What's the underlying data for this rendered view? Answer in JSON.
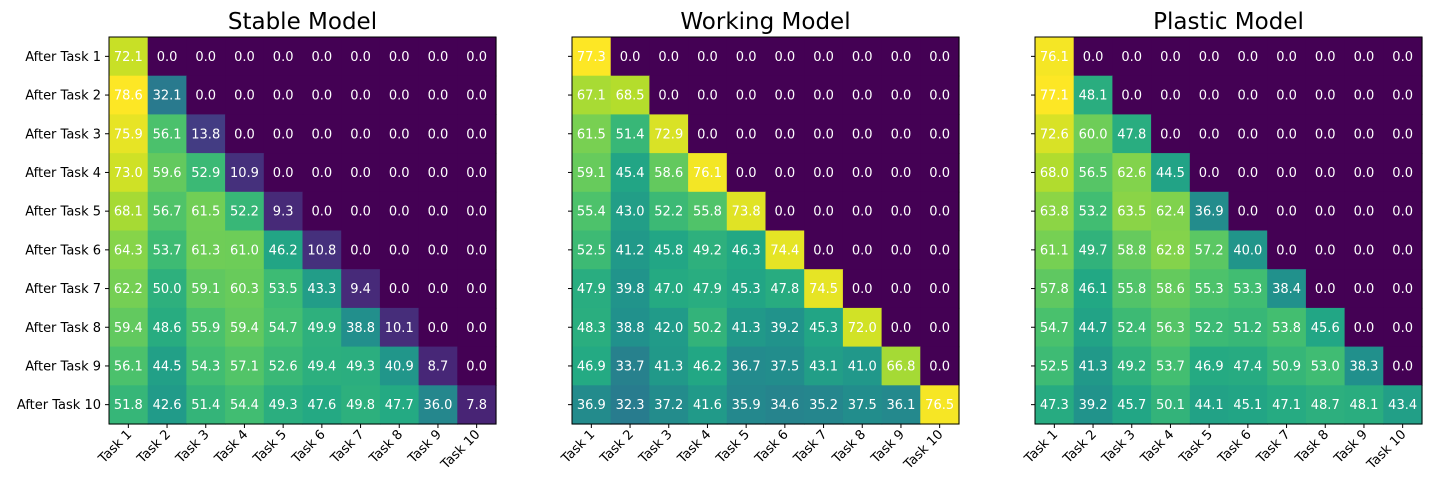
{
  "chart_data": [
    {
      "type": "heatmap",
      "title": "Stable Model",
      "x_categories": [
        "Task 1",
        "Task 2",
        "Task 3",
        "Task 4",
        "Task 5",
        "Task 6",
        "Task 7",
        "Task 8",
        "Task 9",
        "Task 10"
      ],
      "y_categories": [
        "After Task 1",
        "After Task 2",
        "After Task 3",
        "After Task 4",
        "After Task 5",
        "After Task 6",
        "After Task 7",
        "After Task 8",
        "After Task 9",
        "After Task 10"
      ],
      "values": [
        [
          72.1,
          0.0,
          0.0,
          0.0,
          0.0,
          0.0,
          0.0,
          0.0,
          0.0,
          0.0
        ],
        [
          78.6,
          32.1,
          0.0,
          0.0,
          0.0,
          0.0,
          0.0,
          0.0,
          0.0,
          0.0
        ],
        [
          75.9,
          56.1,
          13.8,
          0.0,
          0.0,
          0.0,
          0.0,
          0.0,
          0.0,
          0.0
        ],
        [
          73.0,
          59.6,
          52.9,
          10.9,
          0.0,
          0.0,
          0.0,
          0.0,
          0.0,
          0.0
        ],
        [
          68.1,
          56.7,
          61.5,
          52.2,
          9.3,
          0.0,
          0.0,
          0.0,
          0.0,
          0.0
        ],
        [
          64.3,
          53.7,
          61.3,
          61.0,
          46.2,
          10.8,
          0.0,
          0.0,
          0.0,
          0.0
        ],
        [
          62.2,
          50.0,
          59.1,
          60.3,
          53.5,
          43.3,
          9.4,
          0.0,
          0.0,
          0.0
        ],
        [
          59.4,
          48.6,
          55.9,
          59.4,
          54.7,
          49.9,
          38.8,
          10.1,
          0.0,
          0.0
        ],
        [
          56.1,
          44.5,
          54.3,
          57.1,
          52.6,
          49.4,
          49.3,
          40.9,
          8.7,
          0.0
        ],
        [
          51.8,
          42.6,
          51.4,
          54.4,
          49.3,
          47.6,
          49.8,
          47.7,
          36.0,
          7.8
        ]
      ],
      "colormap": "viridis",
      "show_y_labels": true
    },
    {
      "type": "heatmap",
      "title": "Working Model",
      "x_categories": [
        "Task 1",
        "Task 2",
        "Task 3",
        "Task 4",
        "Task 5",
        "Task 6",
        "Task 7",
        "Task 8",
        "Task 9",
        "Task 10"
      ],
      "y_categories": [
        "After Task 1",
        "After Task 2",
        "After Task 3",
        "After Task 4",
        "After Task 5",
        "After Task 6",
        "After Task 7",
        "After Task 8",
        "After Task 9",
        "After Task 10"
      ],
      "values": [
        [
          77.3,
          0.0,
          0.0,
          0.0,
          0.0,
          0.0,
          0.0,
          0.0,
          0.0,
          0.0
        ],
        [
          67.1,
          68.5,
          0.0,
          0.0,
          0.0,
          0.0,
          0.0,
          0.0,
          0.0,
          0.0
        ],
        [
          61.5,
          51.4,
          72.9,
          0.0,
          0.0,
          0.0,
          0.0,
          0.0,
          0.0,
          0.0
        ],
        [
          59.1,
          45.4,
          58.6,
          76.1,
          0.0,
          0.0,
          0.0,
          0.0,
          0.0,
          0.0
        ],
        [
          55.4,
          43.0,
          52.2,
          55.8,
          73.8,
          0.0,
          0.0,
          0.0,
          0.0,
          0.0
        ],
        [
          52.5,
          41.2,
          45.8,
          49.2,
          46.3,
          74.4,
          0.0,
          0.0,
          0.0,
          0.0
        ],
        [
          47.9,
          39.8,
          47.0,
          47.9,
          45.3,
          47.8,
          74.5,
          0.0,
          0.0,
          0.0
        ],
        [
          48.3,
          38.8,
          42.0,
          50.2,
          41.3,
          39.2,
          45.3,
          72.0,
          0.0,
          0.0
        ],
        [
          46.9,
          33.7,
          41.3,
          46.2,
          36.7,
          37.5,
          43.1,
          41.0,
          66.8,
          0.0
        ],
        [
          36.9,
          32.3,
          37.2,
          41.6,
          35.9,
          34.6,
          35.2,
          37.5,
          36.1,
          76.5
        ]
      ],
      "colormap": "viridis",
      "show_y_labels": false
    },
    {
      "type": "heatmap",
      "title": "Plastic Model",
      "x_categories": [
        "Task 1",
        "Task 2",
        "Task 3",
        "Task 4",
        "Task 5",
        "Task 6",
        "Task 7",
        "Task 8",
        "Task 9",
        "Task 10"
      ],
      "y_categories": [
        "After Task 1",
        "After Task 2",
        "After Task 3",
        "After Task 4",
        "After Task 5",
        "After Task 6",
        "After Task 7",
        "After Task 8",
        "After Task 9",
        "After Task 10"
      ],
      "values": [
        [
          76.1,
          0.0,
          0.0,
          0.0,
          0.0,
          0.0,
          0.0,
          0.0,
          0.0,
          0.0
        ],
        [
          77.1,
          48.1,
          0.0,
          0.0,
          0.0,
          0.0,
          0.0,
          0.0,
          0.0,
          0.0
        ],
        [
          72.6,
          60.0,
          47.8,
          0.0,
          0.0,
          0.0,
          0.0,
          0.0,
          0.0,
          0.0
        ],
        [
          68.0,
          56.5,
          62.6,
          44.5,
          0.0,
          0.0,
          0.0,
          0.0,
          0.0,
          0.0
        ],
        [
          63.8,
          53.2,
          63.5,
          62.4,
          36.9,
          0.0,
          0.0,
          0.0,
          0.0,
          0.0
        ],
        [
          61.1,
          49.7,
          58.8,
          62.8,
          57.2,
          40.0,
          0.0,
          0.0,
          0.0,
          0.0
        ],
        [
          57.8,
          46.1,
          55.8,
          58.6,
          55.3,
          53.3,
          38.4,
          0.0,
          0.0,
          0.0
        ],
        [
          54.7,
          44.7,
          52.4,
          56.3,
          52.2,
          51.2,
          53.8,
          45.6,
          0.0,
          0.0
        ],
        [
          52.5,
          41.3,
          49.2,
          53.7,
          46.9,
          47.4,
          50.9,
          53.0,
          38.3,
          0.0
        ],
        [
          47.3,
          39.2,
          45.7,
          50.1,
          44.1,
          45.1,
          47.1,
          48.7,
          48.1,
          43.4
        ]
      ],
      "colormap": "viridis",
      "show_y_labels": false
    }
  ]
}
